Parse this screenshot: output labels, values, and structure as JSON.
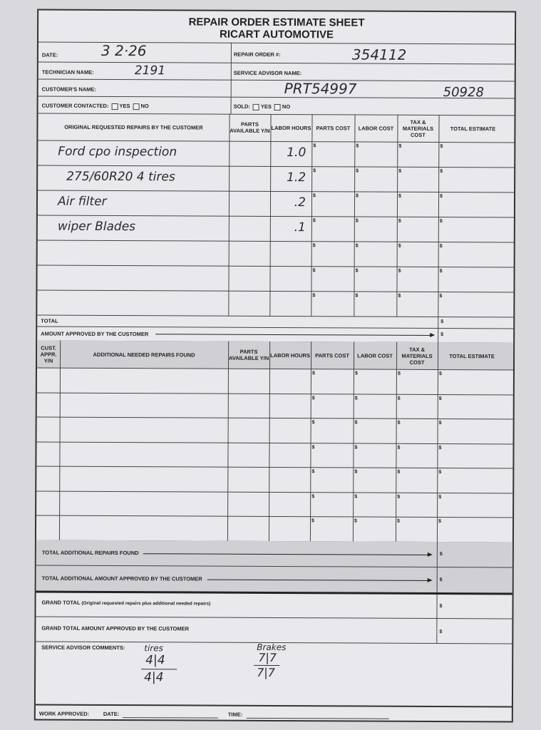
{
  "form": {
    "title": "REPAIR ORDER ESTIMATE SHEET",
    "company": "RICART AUTOMOTIVE",
    "date_label": "DATE:",
    "date_value": "3 2·26",
    "repair_order_label": "REPAIR ORDER #:",
    "repair_order_value": "354112",
    "technician_label": "TECHNICIAN NAME:",
    "technician_value": "2191",
    "service_advisor_label": "SERVICE ADVISOR NAME:",
    "customer_label": "CUSTOMER'S NAME:",
    "customer_value": "PRT54997",
    "customer_value2": "50928",
    "contacted_label": "CUSTOMER CONTACTED:",
    "yes": "YES",
    "no": "NO",
    "sold_label": "SOLD:"
  },
  "original": {
    "headers": [
      "ORIGINAL REQUESTED REPAIRS BY THE CUSTOMER",
      "PARTS AVAILABLE Y/N",
      "LABOR HOURS",
      "PARTS COST",
      "LABOR COST",
      "TAX & MATERIALS COST",
      "TOTAL ESTIMATE"
    ],
    "rows": [
      {
        "desc": "Ford cpo inspection",
        "hours": "1.0"
      },
      {
        "desc": "275/60R20 4 tires",
        "hours": "1.2"
      },
      {
        "desc": "Air filter",
        "hours": ".2"
      },
      {
        "desc": "wiper Blades",
        "hours": ".1"
      },
      {
        "desc": "",
        "hours": ""
      },
      {
        "desc": "",
        "hours": ""
      },
      {
        "desc": "",
        "hours": ""
      }
    ],
    "currency": "$",
    "total_label": "TOTAL",
    "approved_label": "AMOUNT APPROVED BY THE CUSTOMER"
  },
  "additional": {
    "headers": [
      "CUST. APPR. Y/N",
      "ADDITIONAL NEEDED REPAIRS FOUND",
      "PARTS AVAILABLE Y/N",
      "LABOR HOURS",
      "PARTS COST",
      "LABOR COST",
      "TAX & MATERIALS COST",
      "TOTAL ESTIMATE"
    ],
    "row_count": 7,
    "total_label": "TOTAL ADDITIONAL REPAIRS FOUND",
    "approved_label": "TOTAL ADDITIONAL AMOUNT APPROVED BY THE CUSTOMER"
  },
  "grand": {
    "total_label": "GRAND TOTAL",
    "total_note": "(Original requested repairs plus additional needed repairs)",
    "approved_label": "GRAND TOTAL AMOUNT APPROVED BY THE CUSTOMER"
  },
  "comments": {
    "label": "SERVICE ADVISOR COMMENTS:",
    "note1_title": "tires",
    "note1_top": "4|4",
    "note1_bottom": "4|4",
    "note2_title": "Brakes",
    "note2_top": "7|7",
    "note2_bottom": "7|7"
  },
  "footer": {
    "work_approved": "WORK APPROVED:",
    "date": "DATE:",
    "time": "TIME:"
  }
}
